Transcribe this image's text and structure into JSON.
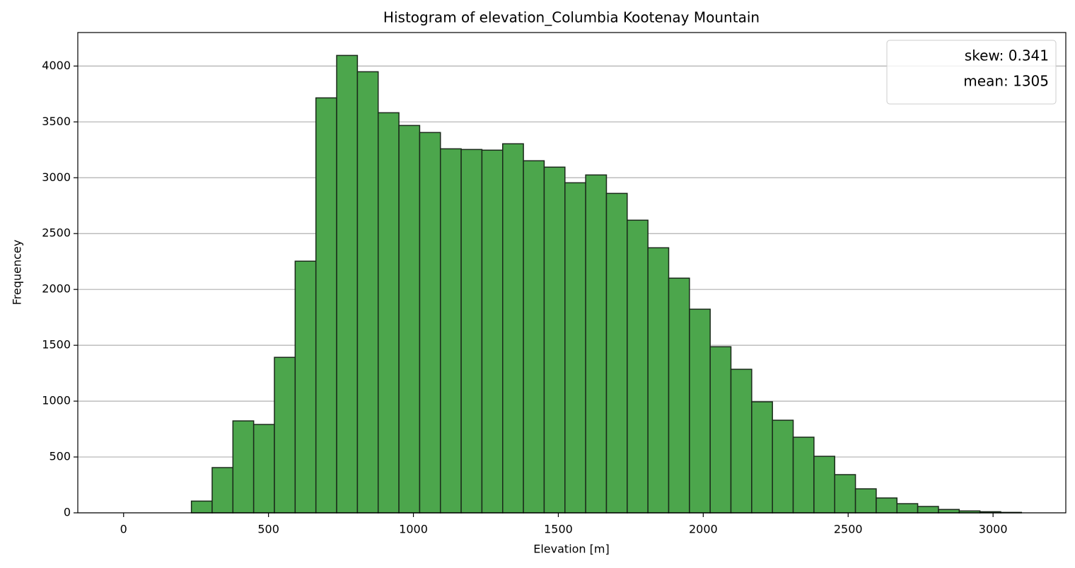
{
  "chart_data": {
    "type": "histogram",
    "title": "Histogram of elevation_Columbia Kootenay Mountain",
    "x_label": "Elevation [m]",
    "y_label": "Frequencey",
    "bins": [
      -124,
      -52.4,
      19.2,
      90.8,
      162.4,
      234,
      305.6,
      377.2,
      448.8,
      520.4,
      592,
      663.6,
      735.2,
      806.8,
      878.4,
      950,
      1021.6,
      1093.2,
      1164.8,
      1236.4,
      1308,
      1379.6,
      1451.2,
      1522.8,
      1594.4,
      1666,
      1737.6,
      1809.2,
      1880.8,
      1952.4,
      2024,
      2095.6,
      2167.2,
      2238.8,
      2310.4,
      2382,
      2453.6,
      2525.2,
      2596.8,
      2668.4,
      2740,
      2811.6,
      2883.2,
      2954.8,
      3026.4,
      3098
    ],
    "values": [
      0,
      0,
      0,
      0,
      0,
      105,
      405,
      823,
      791,
      1392,
      2253,
      3715,
      4095,
      3949,
      3582,
      3468,
      3405,
      3259,
      3253,
      3247,
      3304,
      3152,
      3095,
      2955,
      3025,
      2860,
      2620,
      2373,
      2101,
      1823,
      1487,
      1285,
      994,
      829,
      677,
      506,
      342,
      215,
      133,
      82,
      57,
      30,
      17,
      10,
      4
    ],
    "color": "#4ca64c",
    "edge_color": "#1a2a1a",
    "xlim": [
      -158,
      3251
    ],
    "xticks": [
      0,
      500,
      1000,
      1500,
      2000,
      2500,
      3000
    ],
    "ylim": [
      0,
      4300
    ],
    "yticks": [
      0,
      500,
      1000,
      1500,
      2000,
      2500,
      3000,
      3500,
      4000
    ],
    "grid": "y",
    "legend": {
      "loc": "upper right",
      "entries": [
        "skew: 0.341",
        "mean: 1305"
      ]
    }
  }
}
